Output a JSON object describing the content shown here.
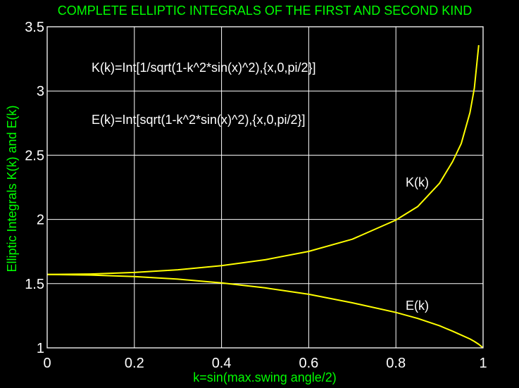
{
  "chart_data": {
    "type": "line",
    "title": "COMPLETE ELLIPTIC INTEGRALS OF THE FIRST AND SECOND KIND",
    "xlabel": "k=sin(max.swing angle/2)",
    "ylabel": "Elliptic Integrals K(k) and E(k)",
    "xlim": [
      0,
      1
    ],
    "ylim": [
      1,
      3.5
    ],
    "xticks": [
      "0",
      "0.2",
      "0.4",
      "0.6",
      "0.8",
      "1"
    ],
    "yticks": [
      "1",
      "1.5",
      "2",
      "2.5",
      "3",
      "3.5"
    ],
    "grid": true,
    "line_color": "#ffff00",
    "annotations": {
      "k_formula": "K(k)=Int[1/sqrt(1-k^2*sin(x)^2),{x,0,pi/2}]",
      "e_formula": "E(k)=Int[sqrt(1-k^2*sin(x)^2),{x,0,pi/2}]",
      "k_label": "K(k)",
      "e_label": "E(k)"
    },
    "series": [
      {
        "name": "K(k)",
        "x": [
          0,
          0.1,
          0.2,
          0.3,
          0.4,
          0.5,
          0.6,
          0.7,
          0.8,
          0.85,
          0.9,
          0.93,
          0.95,
          0.97,
          0.98,
          0.99
        ],
        "y": [
          1.571,
          1.575,
          1.587,
          1.608,
          1.64,
          1.686,
          1.751,
          1.846,
          1.995,
          2.1,
          2.281,
          2.45,
          2.591,
          2.832,
          3.022,
          3.357
        ]
      },
      {
        "name": "E(k)",
        "x": [
          0,
          0.1,
          0.2,
          0.3,
          0.4,
          0.5,
          0.6,
          0.7,
          0.8,
          0.85,
          0.9,
          0.93,
          0.95,
          0.97,
          0.98,
          0.99,
          1.0
        ],
        "y": [
          1.571,
          1.567,
          1.555,
          1.535,
          1.506,
          1.467,
          1.417,
          1.351,
          1.276,
          1.229,
          1.172,
          1.13,
          1.1,
          1.069,
          1.05,
          1.028,
          1.0
        ]
      }
    ]
  }
}
